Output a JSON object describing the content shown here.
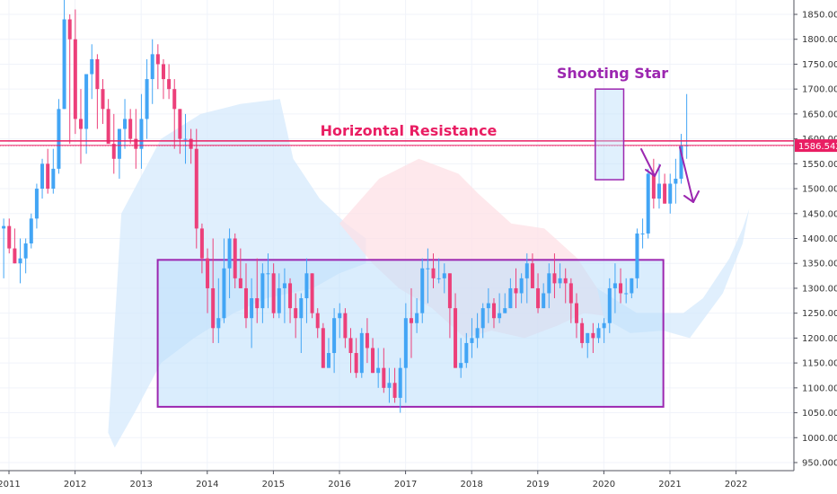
{
  "chart_data": {
    "type": "candlestick",
    "title": "",
    "price_axis": {
      "min": 940,
      "max": 1880,
      "ticks": [
        950,
        1000,
        1050,
        1100,
        1150,
        1200,
        1250,
        1300,
        1350,
        1400,
        1450,
        1500,
        1550,
        1600,
        1650,
        1700,
        1750,
        1800,
        1850
      ],
      "tick_labels": [
        "950.000",
        "1000.000",
        "1050.000",
        "1100.000",
        "1150.000",
        "1200.000",
        "1250.000",
        "1300.000",
        "1350.000",
        "1400.000",
        "1450.000",
        "1500.000",
        "1550.000",
        "1600.000",
        "1650.000",
        "1700.000",
        "1750.000",
        "1800.000",
        "1850.000"
      ]
    },
    "time_axis": {
      "min": 2011.0,
      "max": 2022.9,
      "ticks": [
        2011,
        2012,
        2013,
        2014,
        2015,
        2016,
        2017,
        2018,
        2019,
        2020,
        2021,
        2022
      ],
      "tick_labels": [
        "2011",
        "2012",
        "2013",
        "2014",
        "2015",
        "2016",
        "2017",
        "2018",
        "2019",
        "2020",
        "2021",
        "2022"
      ]
    },
    "colors": {
      "up": "#42a5f5",
      "down": "#ec407a",
      "resistance": "#e91e63",
      "annotation": "#9c27b0",
      "box_fill": "#bbdefb",
      "cloud_bull": "#d6eafc",
      "cloud_bear": "#fde0e6"
    },
    "annotations": {
      "resistance_label": "Horizontal Resistance",
      "resistance_level": 1596,
      "shooting_star_label": "Shooting Star",
      "last_price_label": "1586.542",
      "last_price": 1586.5
    },
    "range_box": {
      "x_start": 2013.25,
      "x_end": 2020.9,
      "top": 1357,
      "bottom": 1062
    },
    "star_box": {
      "x_start": 2019.87,
      "x_end": 2020.3,
      "top": 1700,
      "bottom": 1518
    },
    "candles": {
      "o": [
        1420,
        1425,
        1380,
        1350,
        1360,
        1390,
        1440,
        1500,
        1550,
        1500,
        1540,
        1660,
        1840,
        1800,
        1640,
        1620,
        1730,
        1760,
        1700,
        1660,
        1590,
        1560,
        1620,
        1640,
        1600,
        1580,
        1640,
        1720,
        1770,
        1750,
        1720,
        1700,
        1660,
        1600,
        1600,
        1580,
        1420,
        1360,
        1300,
        1220,
        1240,
        1340,
        1400,
        1320,
        1300,
        1240,
        1280,
        1260,
        1330,
        1330,
        1250,
        1300,
        1310,
        1260,
        1240,
        1280,
        1330,
        1250,
        1220,
        1140,
        1170,
        1240,
        1250,
        1200,
        1170,
        1130,
        1210,
        1180,
        1130,
        1140,
        1100,
        1110,
        1080,
        1140,
        1240,
        1230,
        1250,
        1340,
        1340,
        1320,
        1320,
        1330,
        1260,
        1140,
        1150,
        1190,
        1200,
        1220,
        1260,
        1270,
        1240,
        1250,
        1260,
        1300,
        1290,
        1320,
        1350,
        1300,
        1260,
        1290,
        1330,
        1310,
        1320,
        1310,
        1270,
        1230,
        1190,
        1210,
        1200,
        1220,
        1230,
        1300,
        1310,
        1290,
        1290,
        1320,
        1410,
        1410,
        1530,
        1480,
        1510,
        1470,
        1510,
        1520,
        1587
      ],
      "h": [
        1440,
        1440,
        1420,
        1400,
        1400,
        1450,
        1510,
        1560,
        1580,
        1580,
        1680,
        1880,
        1850,
        1860,
        1700,
        1710,
        1790,
        1770,
        1720,
        1680,
        1650,
        1620,
        1680,
        1660,
        1660,
        1690,
        1760,
        1800,
        1790,
        1760,
        1750,
        1720,
        1660,
        1650,
        1620,
        1620,
        1430,
        1380,
        1400,
        1320,
        1400,
        1420,
        1410,
        1380,
        1350,
        1320,
        1360,
        1350,
        1370,
        1350,
        1330,
        1340,
        1320,
        1290,
        1290,
        1360,
        1330,
        1260,
        1230,
        1200,
        1260,
        1270,
        1260,
        1220,
        1200,
        1220,
        1240,
        1200,
        1180,
        1180,
        1140,
        1140,
        1160,
        1270,
        1300,
        1280,
        1360,
        1380,
        1370,
        1360,
        1350,
        1330,
        1290,
        1200,
        1210,
        1240,
        1250,
        1270,
        1300,
        1280,
        1290,
        1290,
        1320,
        1340,
        1330,
        1370,
        1370,
        1330,
        1310,
        1350,
        1370,
        1350,
        1340,
        1320,
        1290,
        1240,
        1210,
        1230,
        1230,
        1240,
        1320,
        1350,
        1340,
        1320,
        1320,
        1420,
        1440,
        1540,
        1560,
        1550,
        1530,
        1530,
        1560,
        1610,
        1690
      ],
      "l": [
        1320,
        1370,
        1350,
        1310,
        1330,
        1380,
        1420,
        1480,
        1490,
        1490,
        1530,
        1660,
        1590,
        1610,
        1550,
        1570,
        1680,
        1620,
        1630,
        1600,
        1530,
        1520,
        1580,
        1590,
        1540,
        1540,
        1600,
        1670,
        1700,
        1680,
        1680,
        1580,
        1570,
        1550,
        1550,
        1380,
        1330,
        1250,
        1190,
        1190,
        1230,
        1280,
        1300,
        1300,
        1220,
        1180,
        1230,
        1230,
        1260,
        1240,
        1240,
        1230,
        1230,
        1200,
        1170,
        1230,
        1240,
        1200,
        1140,
        1140,
        1130,
        1200,
        1180,
        1130,
        1120,
        1120,
        1150,
        1130,
        1100,
        1090,
        1070,
        1070,
        1050,
        1070,
        1160,
        1210,
        1230,
        1270,
        1300,
        1310,
        1290,
        1200,
        1140,
        1120,
        1140,
        1160,
        1180,
        1200,
        1230,
        1220,
        1230,
        1250,
        1260,
        1260,
        1270,
        1270,
        1310,
        1250,
        1260,
        1260,
        1280,
        1300,
        1270,
        1230,
        1200,
        1180,
        1160,
        1170,
        1190,
        1190,
        1210,
        1250,
        1270,
        1270,
        1280,
        1300,
        1380,
        1400,
        1460,
        1460,
        1470,
        1450,
        1470,
        1510,
        1560
      ],
      "c": [
        1425,
        1380,
        1350,
        1360,
        1390,
        1440,
        1500,
        1550,
        1500,
        1540,
        1660,
        1840,
        1800,
        1640,
        1620,
        1730,
        1760,
        1700,
        1660,
        1590,
        1560,
        1620,
        1640,
        1600,
        1580,
        1640,
        1720,
        1770,
        1750,
        1720,
        1700,
        1660,
        1600,
        1600,
        1580,
        1420,
        1360,
        1300,
        1220,
        1240,
        1340,
        1400,
        1320,
        1300,
        1240,
        1280,
        1260,
        1330,
        1330,
        1250,
        1300,
        1310,
        1260,
        1240,
        1280,
        1330,
        1250,
        1220,
        1140,
        1170,
        1240,
        1250,
        1200,
        1170,
        1130,
        1210,
        1180,
        1130,
        1140,
        1100,
        1110,
        1080,
        1140,
        1240,
        1230,
        1250,
        1340,
        1340,
        1320,
        1320,
        1330,
        1260,
        1140,
        1150,
        1190,
        1200,
        1220,
        1260,
        1270,
        1240,
        1250,
        1260,
        1300,
        1290,
        1320,
        1350,
        1300,
        1260,
        1290,
        1330,
        1310,
        1320,
        1310,
        1270,
        1230,
        1190,
        1210,
        1200,
        1220,
        1230,
        1300,
        1310,
        1290,
        1290,
        1320,
        1410,
        1410,
        1530,
        1480,
        1510,
        1470,
        1510,
        1520,
        1587,
        1587
      ]
    }
  }
}
